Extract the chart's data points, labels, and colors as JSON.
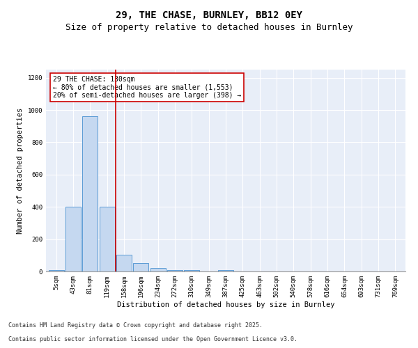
{
  "title1": "29, THE CHASE, BURNLEY, BB12 0EY",
  "title2": "Size of property relative to detached houses in Burnley",
  "xlabel": "Distribution of detached houses by size in Burnley",
  "ylabel": "Number of detached properties",
  "bins": [
    "5sqm",
    "43sqm",
    "81sqm",
    "119sqm",
    "158sqm",
    "196sqm",
    "234sqm",
    "272sqm",
    "310sqm",
    "349sqm",
    "387sqm",
    "425sqm",
    "463sqm",
    "502sqm",
    "540sqm",
    "578sqm",
    "616sqm",
    "654sqm",
    "693sqm",
    "731sqm",
    "769sqm"
  ],
  "values": [
    10,
    400,
    960,
    400,
    105,
    50,
    20,
    10,
    10,
    0,
    10,
    0,
    0,
    0,
    0,
    0,
    0,
    0,
    0,
    0,
    0
  ],
  "bar_color": "#c5d8f0",
  "bar_edge_color": "#5b9bd5",
  "vline_color": "#cc0000",
  "annotation_text": "29 THE CHASE: 130sqm\n← 80% of detached houses are smaller (1,553)\n20% of semi-detached houses are larger (398) →",
  "ylim": [
    0,
    1250
  ],
  "yticks": [
    0,
    200,
    400,
    600,
    800,
    1000,
    1200
  ],
  "background_color": "#e8eef8",
  "grid_color": "#ffffff",
  "footer1": "Contains HM Land Registry data © Crown copyright and database right 2025.",
  "footer2": "Contains public sector information licensed under the Open Government Licence v3.0.",
  "title_fontsize": 10,
  "subtitle_fontsize": 9,
  "axis_fontsize": 7.5,
  "tick_fontsize": 6.5,
  "annotation_fontsize": 7,
  "footer_fontsize": 6
}
